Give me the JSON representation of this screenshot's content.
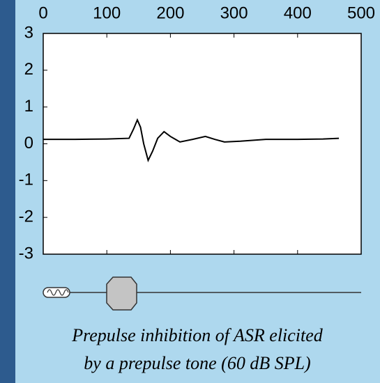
{
  "chart_data": {
    "type": "line",
    "x": [
      0,
      50,
      100,
      135,
      142,
      148,
      153,
      158,
      165,
      172,
      180,
      190,
      200,
      215,
      235,
      255,
      270,
      285,
      310,
      350,
      400,
      440,
      465
    ],
    "series": [
      {
        "color": "#000000",
        "values": [
          0.12,
          0.12,
          0.13,
          0.15,
          0.4,
          0.65,
          0.45,
          0.0,
          -0.45,
          -0.2,
          0.15,
          0.33,
          0.2,
          0.05,
          0.12,
          0.2,
          0.12,
          0.05,
          0.07,
          0.12,
          0.12,
          0.13,
          0.15
        ]
      }
    ],
    "xlim": [
      0,
      500
    ],
    "xticks": [
      0,
      100,
      200,
      300,
      400,
      500
    ],
    "ylim": [
      -3,
      3
    ],
    "yticks": [
      -3,
      -2,
      -1,
      0,
      1,
      2,
      3
    ],
    "caption": [
      "Prepulse inhibition of ASR elicited",
      "by a prepulse tone (60 dB SPL)"
    ]
  }
}
